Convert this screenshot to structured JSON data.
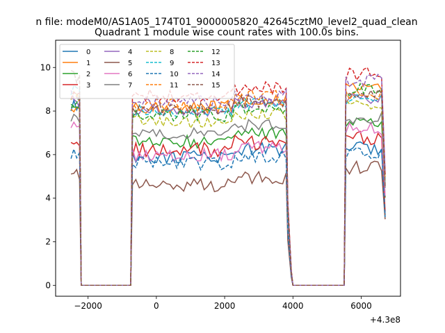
{
  "chart_data": {
    "type": "line",
    "suptitle": "n file: modeM0/AS1A05_174T01_9000005820_42645cztM0_level2_quad_clean",
    "title": "Quadrant 1 module wise count rates with 100.0s bins.",
    "xlabel": "",
    "ylabel": "",
    "offset_text": "+4.3e8",
    "xlim": [
      -2950,
      7150
    ],
    "ylim": [
      -0.5,
      11.25
    ],
    "xticks": [
      -2000,
      0,
      2000,
      4000,
      6000
    ],
    "xtick_labels": [
      "−2000",
      "0",
      "2000",
      "4000",
      "6000"
    ],
    "yticks": [
      0,
      2,
      4,
      6,
      8,
      10
    ],
    "ytick_labels": [
      "0",
      "2",
      "4",
      "6",
      "8",
      "10"
    ],
    "grid": false,
    "legend_placement": "top-left",
    "legend_columns": 4,
    "segments": [
      {
        "start": -2500,
        "end": -2250,
        "count": 4
      },
      {
        "start": -2200,
        "end": -750,
        "count": 16,
        "zero": true
      },
      {
        "start": -700,
        "end": 3800,
        "count": 46
      },
      {
        "start": 3850,
        "end": 3950,
        "count": 2
      },
      {
        "start": 4000,
        "end": 5500,
        "count": 16,
        "zero": true
      },
      {
        "start": 5550,
        "end": 6700,
        "count": 12
      }
    ],
    "series": [
      {
        "name": "0",
        "color": "#1f77b4",
        "dash": "solid",
        "pre": 8.3,
        "level": 5.9,
        "post": 6.3,
        "amp": 0.3
      },
      {
        "name": "1",
        "color": "#ff7f0e",
        "dash": "solid",
        "pre": 8.2,
        "level": 8.2,
        "post": 9.2,
        "amp": 0.3
      },
      {
        "name": "2",
        "color": "#2ca02c",
        "dash": "solid",
        "pre": 8.0,
        "level": 6.6,
        "post": 7.4,
        "amp": 0.3
      },
      {
        "name": "3",
        "color": "#d62728",
        "dash": "solid",
        "pre": 6.4,
        "level": 6.2,
        "post": 6.8,
        "amp": 0.35
      },
      {
        "name": "4",
        "color": "#9467bd",
        "dash": "solid",
        "pre": 8.4,
        "level": 8.0,
        "post": 8.6,
        "amp": 0.25
      },
      {
        "name": "5",
        "color": "#8c564b",
        "dash": "solid",
        "pre": 5.1,
        "level": 4.6,
        "post": 5.4,
        "amp": 0.3
      },
      {
        "name": "6",
        "color": "#e377c2",
        "dash": "solid",
        "pre": 7.2,
        "level": 6.0,
        "post": 7.2,
        "amp": 0.3
      },
      {
        "name": "7",
        "color": "#7f7f7f",
        "dash": "solid",
        "pre": 7.6,
        "level": 7.0,
        "post": 7.7,
        "amp": 0.3
      },
      {
        "name": "8",
        "color": "#bcbd22",
        "dash": "dashed",
        "pre": 8.7,
        "level": 7.5,
        "post": 8.3,
        "amp": 0.3
      },
      {
        "name": "9",
        "color": "#17becf",
        "dash": "dashed",
        "pre": 8.9,
        "level": 8.0,
        "post": 8.6,
        "amp": 0.3
      },
      {
        "name": "10",
        "color": "#1f77b4",
        "dash": "dashed",
        "pre": 6.1,
        "level": 5.6,
        "post": 6.1,
        "amp": 0.3
      },
      {
        "name": "11",
        "color": "#ff7f0e",
        "dash": "dashed",
        "pre": 8.5,
        "level": 8.3,
        "post": 8.8,
        "amp": 0.3
      },
      {
        "name": "12",
        "color": "#2ca02c",
        "dash": "dashed",
        "pre": 8.4,
        "level": 7.8,
        "post": 9.0,
        "amp": 0.3
      },
      {
        "name": "13",
        "color": "#d62728",
        "dash": "dashed",
        "pre": 8.6,
        "level": 8.7,
        "post": 9.7,
        "amp": 0.3
      },
      {
        "name": "14",
        "color": "#9467bd",
        "dash": "dashed",
        "pre": 8.8,
        "level": 8.4,
        "post": 9.4,
        "amp": 0.3
      },
      {
        "name": "15",
        "color": "#8c564b",
        "dash": "dashed",
        "pre": 9.6,
        "level": 8.1,
        "post": 8.8,
        "amp": 0.3
      }
    ]
  }
}
